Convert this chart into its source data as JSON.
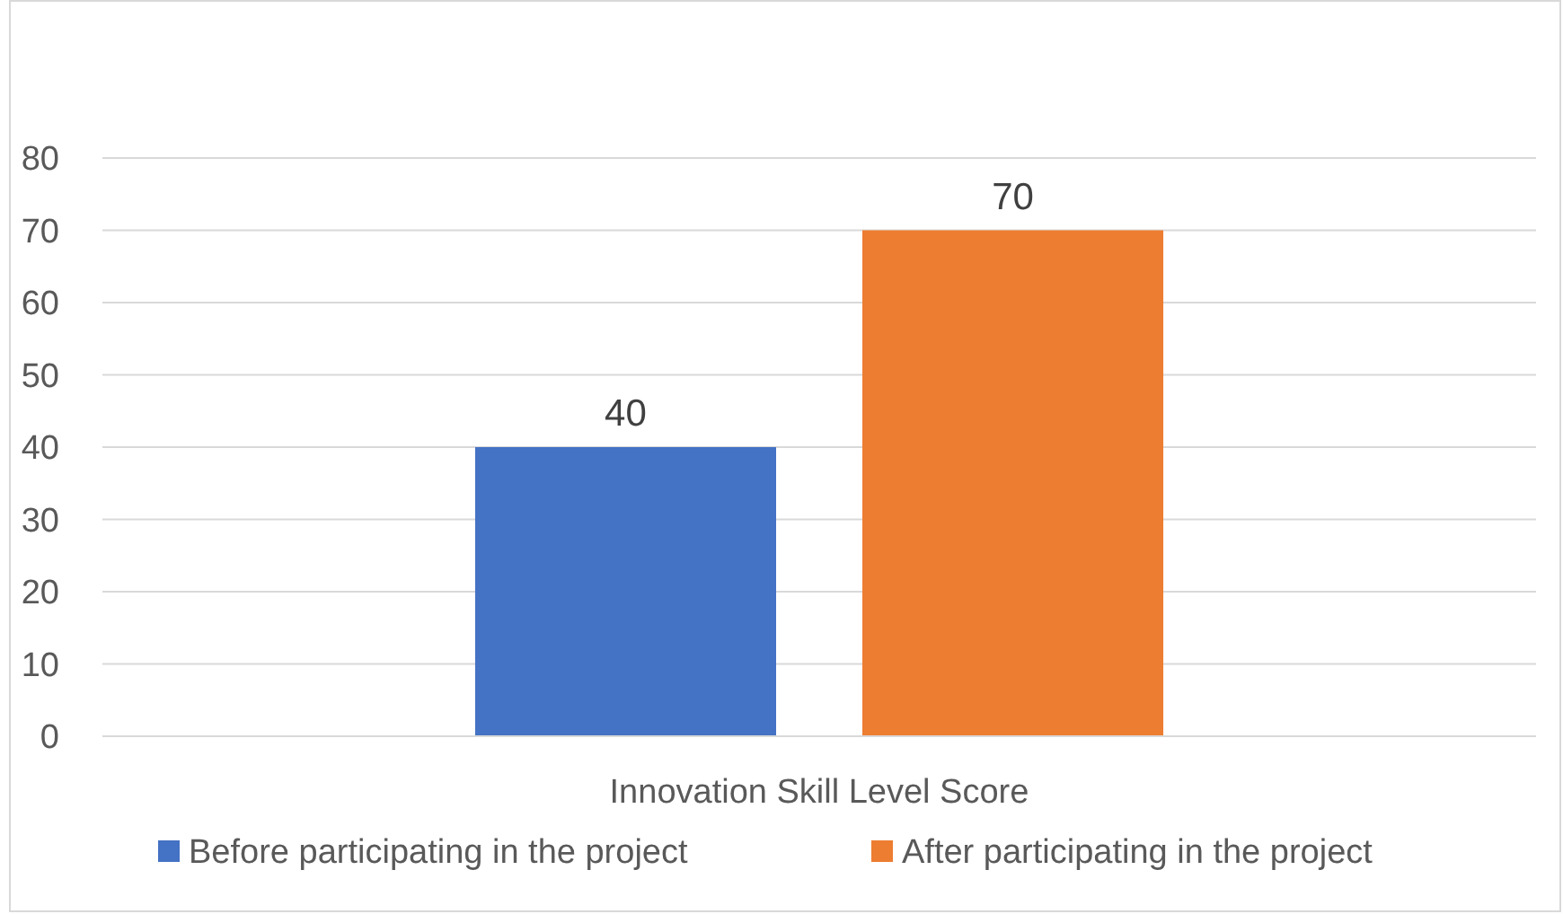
{
  "chart_data": {
    "type": "bar",
    "categories": [
      "Innovation Skill Level Score"
    ],
    "series": [
      {
        "name": "Before participating in the project",
        "color": "#4472c4",
        "values": [
          40
        ]
      },
      {
        "name": "After participating in the project",
        "color": "#ed7d31",
        "values": [
          70
        ]
      }
    ],
    "ylim": [
      0,
      80
    ],
    "yticks": [
      0,
      10,
      20,
      30,
      40,
      50,
      60,
      70,
      80
    ],
    "grid": "y",
    "legend": "bottom",
    "data_labels": true
  }
}
